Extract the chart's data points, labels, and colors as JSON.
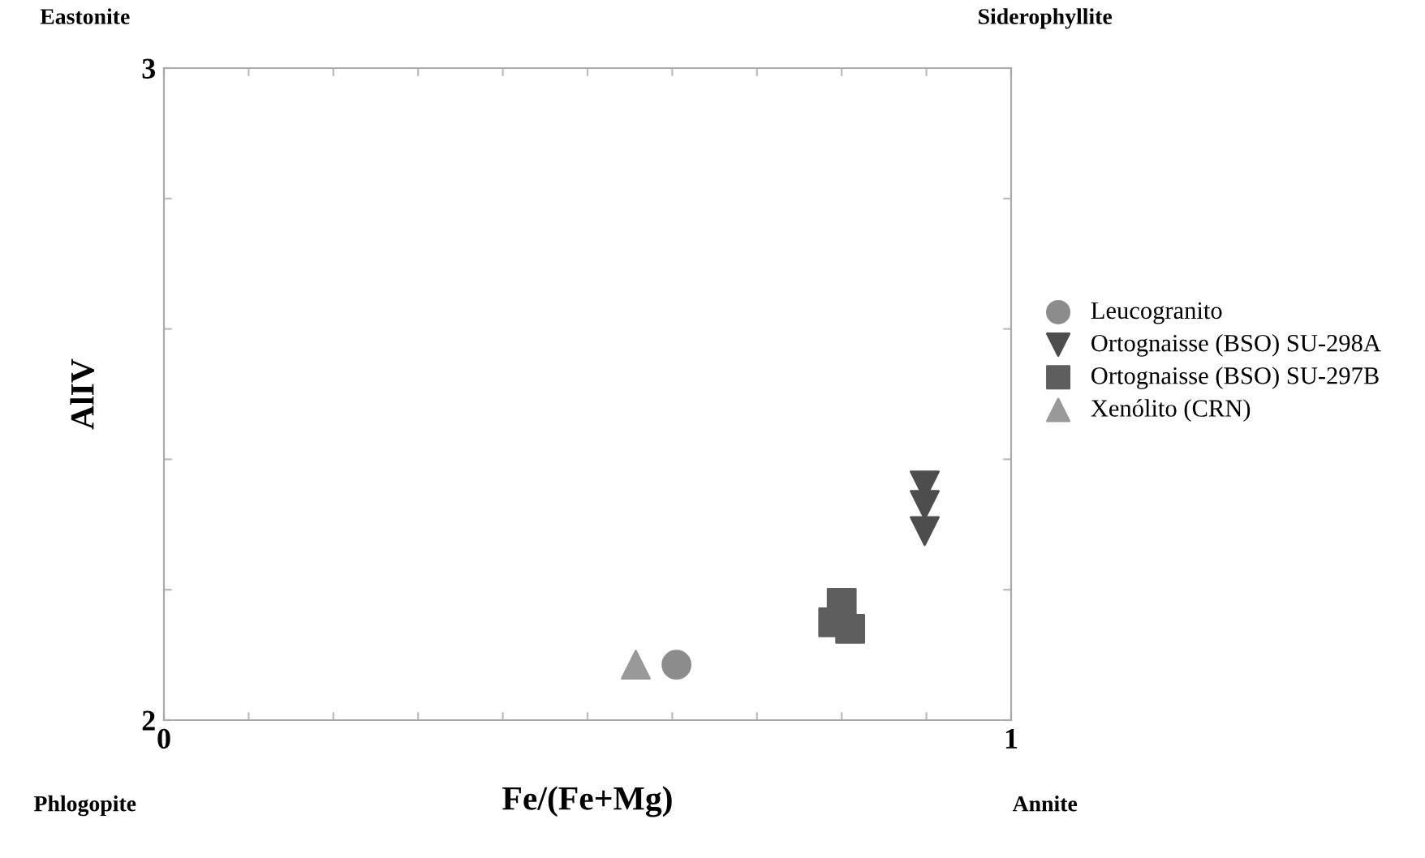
{
  "chart_data": {
    "type": "scatter",
    "xlabel": "Fe/(Fe+Mg)",
    "ylabel": "AlIV",
    "xlim": [
      0,
      1
    ],
    "ylim": [
      2,
      3
    ],
    "xticks": [
      0,
      {
        "value": 0.1,
        "label": null
      },
      {
        "value": 0.2,
        "label": null
      },
      {
        "value": 0.3,
        "label": null
      },
      {
        "value": 0.4,
        "label": null
      },
      {
        "value": 0.5,
        "label": null
      },
      {
        "value": 0.6,
        "label": null
      },
      {
        "value": 0.7,
        "label": null
      },
      {
        "value": 0.8,
        "label": null
      },
      {
        "value": 0.9,
        "label": null
      },
      1
    ],
    "yticks": [
      2,
      {
        "value": 2.2,
        "label": null
      },
      {
        "value": 2.4,
        "label": null
      },
      {
        "value": 2.6,
        "label": null
      },
      {
        "value": 2.8,
        "label": null
      },
      3
    ],
    "grid": false,
    "legend": "right",
    "annotations": [
      "Eastonite",
      "Siderophyllite",
      "Phlogopite",
      "Annite"
    ],
    "series": [
      {
        "name": "Leucogranito",
        "color": "#8c8c8c",
        "marker": "circle",
        "x": [
          0.605
        ],
        "values": [
          2.085
        ]
      },
      {
        "name": "Ortognaisse (BSO) SU-298A",
        "color": "#4d4d4d",
        "marker": "triangle_down",
        "x": [
          0.898,
          0.898,
          0.898
        ],
        "values": [
          2.36,
          2.33,
          2.29
        ]
      },
      {
        "name": "Ortognaisse (BSO) SU-297B",
        "color": "#5e5e5e",
        "marker": "square",
        "x": [
          0.8,
          0.79,
          0.81
        ],
        "values": [
          2.18,
          2.15,
          2.14
        ]
      },
      {
        "name": "Xenólito (CRN)",
        "color": "#999999",
        "marker": "triangle",
        "x": [
          0.557
        ],
        "values": [
          2.085
        ]
      }
    ]
  }
}
